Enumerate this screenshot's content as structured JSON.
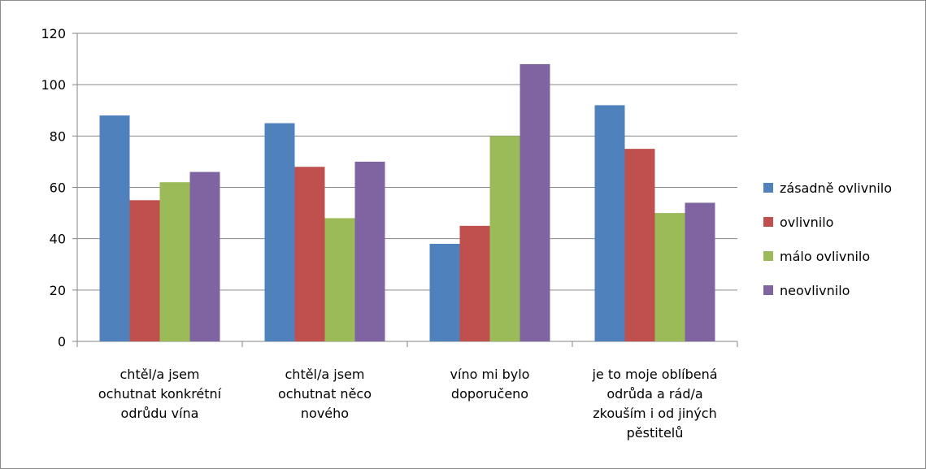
{
  "chart_data": {
    "type": "bar",
    "title": "",
    "xlabel": "",
    "ylabel": "",
    "ylim": [
      0,
      120
    ],
    "yticks": [
      0,
      20,
      40,
      60,
      80,
      100,
      120
    ],
    "grid": true,
    "legend_position": "right",
    "categories": [
      [
        "chtěl/a jsem",
        "ochutnat konkrétní",
        "odrůdu vína"
      ],
      [
        "chtěl/a jsem",
        "ochutnat něco",
        "nového"
      ],
      [
        "víno mi bylo",
        "doporučeno"
      ],
      [
        "je to moje oblíbená",
        "odrůda a rád/a",
        "zkouším i od jiných",
        "pěstitelů"
      ]
    ],
    "series": [
      {
        "name": "zásadně ovlivnilo",
        "color": "#4f81bd",
        "values": [
          88,
          85,
          38,
          92
        ]
      },
      {
        "name": "ovlivnilo",
        "color": "#c0504d",
        "values": [
          55,
          68,
          45,
          75
        ]
      },
      {
        "name": "málo ovlivnilo",
        "color": "#9bbb59",
        "values": [
          62,
          48,
          80,
          50
        ]
      },
      {
        "name": "neovlivnilo",
        "color": "#8064a2",
        "values": [
          66,
          70,
          108,
          54
        ]
      }
    ]
  }
}
